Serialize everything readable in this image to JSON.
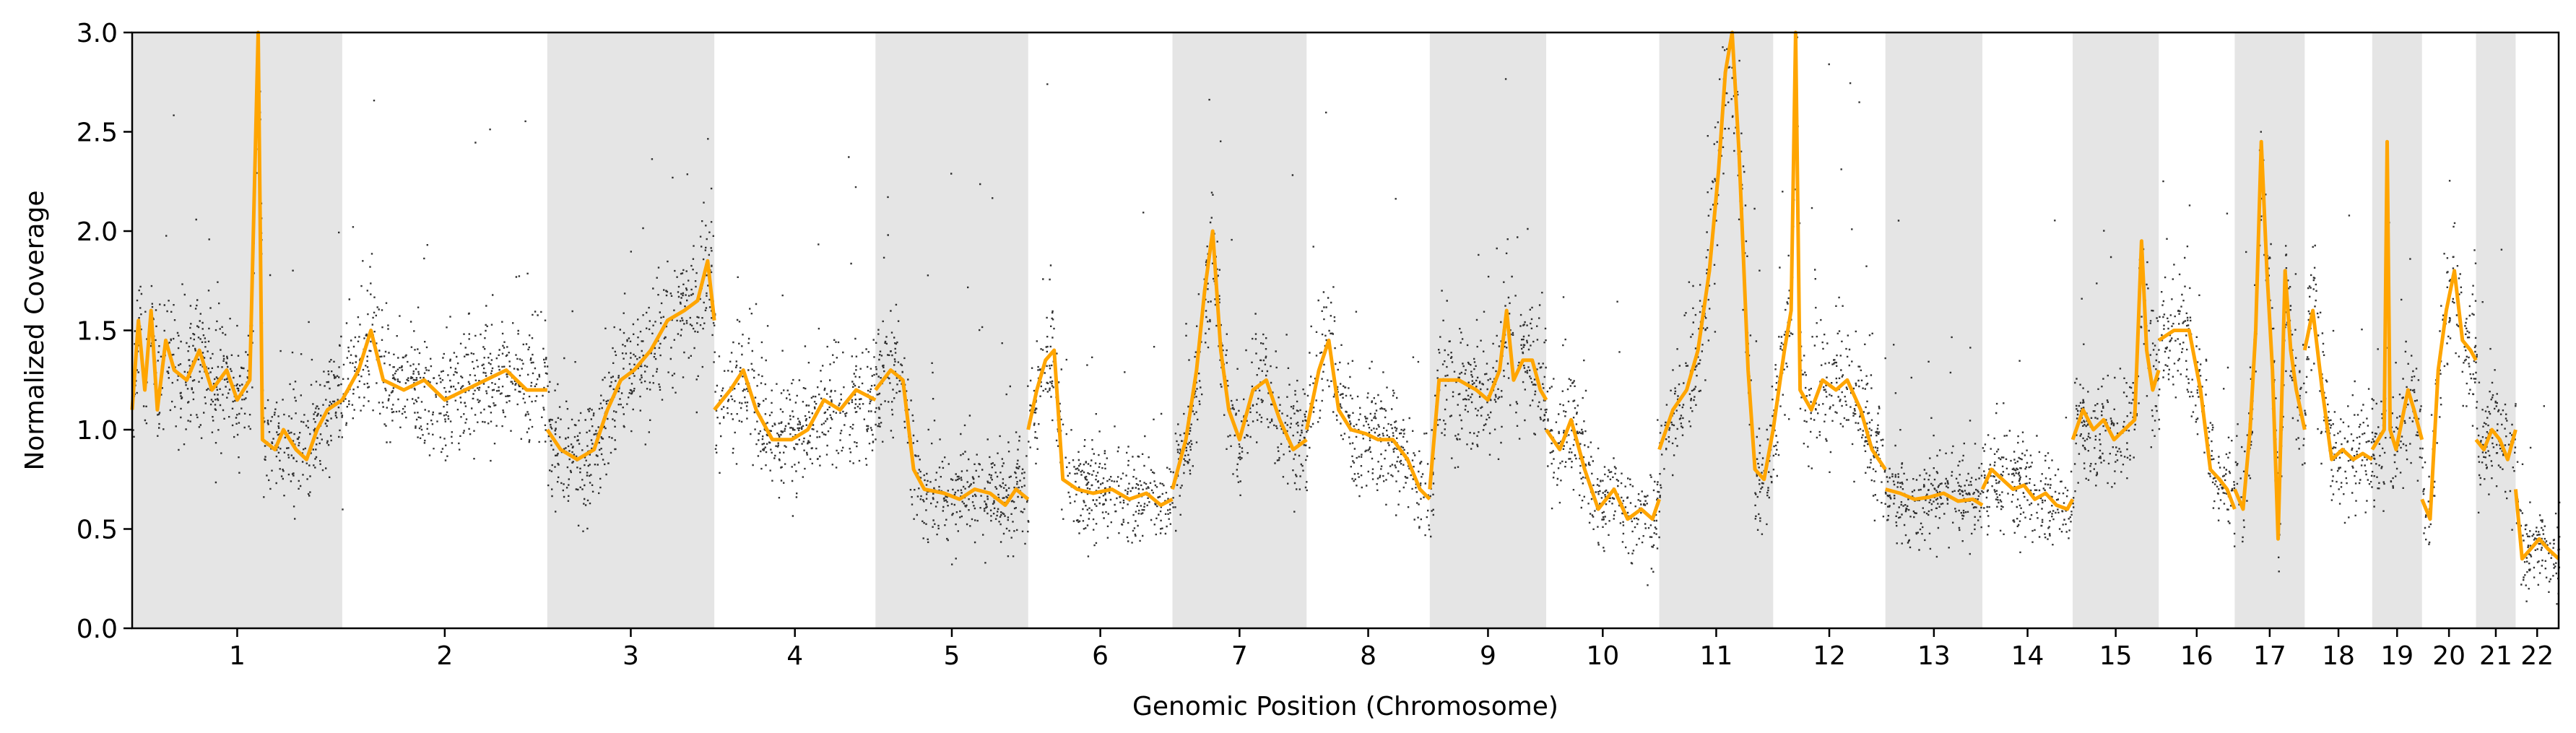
{
  "chart_data": {
    "type": "scatter",
    "xlabel": "Genomic Position (Chromosome)",
    "ylabel": "Normalized Coverage",
    "ylim": [
      0,
      3.0
    ],
    "yticks": [
      0.0,
      0.5,
      1.0,
      1.5,
      2.0,
      2.5,
      3.0
    ],
    "ytick_labels": [
      "0.0",
      "0.5",
      "1.0",
      "1.5",
      "2.0",
      "2.5",
      "3.0"
    ],
    "grid": false,
    "legend": "none",
    "chromosome_band_color": "#e5e5e5",
    "point_color": "#000000",
    "segment_color": "#ffa500",
    "chromosomes": [
      {
        "label": "1",
        "length": 249,
        "shaded": true,
        "seg": [
          [
            0,
            1.1
          ],
          [
            0.03,
            1.55
          ],
          [
            0.06,
            1.2
          ],
          [
            0.09,
            1.6
          ],
          [
            0.12,
            1.1
          ],
          [
            0.16,
            1.45
          ],
          [
            0.2,
            1.3
          ],
          [
            0.26,
            1.25
          ],
          [
            0.32,
            1.4
          ],
          [
            0.38,
            1.2
          ],
          [
            0.45,
            1.3
          ],
          [
            0.5,
            1.15
          ],
          [
            0.56,
            1.25
          ],
          [
            0.6,
            3.0
          ],
          [
            0.62,
            0.95
          ],
          [
            0.68,
            0.9
          ],
          [
            0.72,
            1.0
          ],
          [
            0.78,
            0.9
          ],
          [
            0.83,
            0.85
          ],
          [
            0.88,
            1.0
          ],
          [
            0.93,
            1.1
          ],
          [
            1.0,
            1.15
          ]
        ]
      },
      {
        "label": "2",
        "length": 243,
        "shaded": false,
        "seg": [
          [
            0,
            1.15
          ],
          [
            0.08,
            1.3
          ],
          [
            0.14,
            1.5
          ],
          [
            0.2,
            1.25
          ],
          [
            0.3,
            1.2
          ],
          [
            0.4,
            1.25
          ],
          [
            0.5,
            1.15
          ],
          [
            0.6,
            1.2
          ],
          [
            0.7,
            1.25
          ],
          [
            0.8,
            1.3
          ],
          [
            0.9,
            1.2
          ],
          [
            1.0,
            1.2
          ]
        ]
      },
      {
        "label": "3",
        "length": 198,
        "shaded": true,
        "seg": [
          [
            0,
            1.0
          ],
          [
            0.08,
            0.9
          ],
          [
            0.18,
            0.85
          ],
          [
            0.28,
            0.9
          ],
          [
            0.36,
            1.1
          ],
          [
            0.44,
            1.25
          ],
          [
            0.52,
            1.3
          ],
          [
            0.62,
            1.4
          ],
          [
            0.72,
            1.55
          ],
          [
            0.82,
            1.6
          ],
          [
            0.9,
            1.65
          ],
          [
            0.96,
            1.85
          ],
          [
            1.0,
            1.55
          ]
        ]
      },
      {
        "label": "4",
        "length": 191,
        "shaded": false,
        "seg": [
          [
            0,
            1.1
          ],
          [
            0.1,
            1.2
          ],
          [
            0.18,
            1.3
          ],
          [
            0.26,
            1.1
          ],
          [
            0.36,
            0.95
          ],
          [
            0.48,
            0.95
          ],
          [
            0.58,
            1.0
          ],
          [
            0.68,
            1.15
          ],
          [
            0.78,
            1.1
          ],
          [
            0.88,
            1.2
          ],
          [
            1.0,
            1.15
          ]
        ]
      },
      {
        "label": "5",
        "length": 181,
        "shaded": true,
        "seg": [
          [
            0,
            1.2
          ],
          [
            0.1,
            1.3
          ],
          [
            0.18,
            1.25
          ],
          [
            0.25,
            0.8
          ],
          [
            0.32,
            0.7
          ],
          [
            0.45,
            0.68
          ],
          [
            0.55,
            0.65
          ],
          [
            0.65,
            0.7
          ],
          [
            0.75,
            0.68
          ],
          [
            0.85,
            0.62
          ],
          [
            0.92,
            0.7
          ],
          [
            1.0,
            0.65
          ]
        ]
      },
      {
        "label": "6",
        "length": 171,
        "shaded": false,
        "seg": [
          [
            0,
            1.0
          ],
          [
            0.06,
            1.2
          ],
          [
            0.12,
            1.35
          ],
          [
            0.18,
            1.4
          ],
          [
            0.24,
            0.75
          ],
          [
            0.34,
            0.7
          ],
          [
            0.45,
            0.68
          ],
          [
            0.58,
            0.7
          ],
          [
            0.7,
            0.65
          ],
          [
            0.82,
            0.68
          ],
          [
            0.92,
            0.62
          ],
          [
            1.0,
            0.65
          ]
        ]
      },
      {
        "label": "7",
        "length": 159,
        "shaded": true,
        "seg": [
          [
            0,
            0.7
          ],
          [
            0.1,
            0.95
          ],
          [
            0.18,
            1.3
          ],
          [
            0.24,
            1.7
          ],
          [
            0.3,
            2.0
          ],
          [
            0.36,
            1.4
          ],
          [
            0.42,
            1.1
          ],
          [
            0.5,
            0.95
          ],
          [
            0.6,
            1.2
          ],
          [
            0.7,
            1.25
          ],
          [
            0.8,
            1.05
          ],
          [
            0.9,
            0.9
          ],
          [
            1.0,
            0.95
          ]
        ]
      },
      {
        "label": "8",
        "length": 146,
        "shaded": false,
        "seg": [
          [
            0,
            1.0
          ],
          [
            0.1,
            1.3
          ],
          [
            0.18,
            1.45
          ],
          [
            0.26,
            1.1
          ],
          [
            0.36,
            1.0
          ],
          [
            0.48,
            0.98
          ],
          [
            0.58,
            0.95
          ],
          [
            0.7,
            0.95
          ],
          [
            0.82,
            0.85
          ],
          [
            0.92,
            0.7
          ],
          [
            1.0,
            0.65
          ]
        ]
      },
      {
        "label": "9",
        "length": 138,
        "shaded": true,
        "seg": [
          [
            0,
            0.7
          ],
          [
            0.08,
            1.25
          ],
          [
            0.25,
            1.25
          ],
          [
            0.4,
            1.2
          ],
          [
            0.5,
            1.15
          ],
          [
            0.6,
            1.3
          ],
          [
            0.66,
            1.6
          ],
          [
            0.72,
            1.25
          ],
          [
            0.8,
            1.35
          ],
          [
            0.88,
            1.35
          ],
          [
            0.95,
            1.2
          ],
          [
            1.0,
            1.15
          ]
        ]
      },
      {
        "label": "10",
        "length": 134,
        "shaded": false,
        "seg": [
          [
            0,
            1.0
          ],
          [
            0.12,
            0.9
          ],
          [
            0.22,
            1.05
          ],
          [
            0.34,
            0.8
          ],
          [
            0.46,
            0.6
          ],
          [
            0.6,
            0.7
          ],
          [
            0.72,
            0.55
          ],
          [
            0.84,
            0.6
          ],
          [
            0.94,
            0.55
          ],
          [
            1.0,
            0.65
          ]
        ]
      },
      {
        "label": "11",
        "length": 135,
        "shaded": true,
        "seg": [
          [
            0,
            0.9
          ],
          [
            0.12,
            1.1
          ],
          [
            0.24,
            1.2
          ],
          [
            0.34,
            1.4
          ],
          [
            0.44,
            1.8
          ],
          [
            0.52,
            2.3
          ],
          [
            0.58,
            2.8
          ],
          [
            0.64,
            3.0
          ],
          [
            0.7,
            2.4
          ],
          [
            0.78,
            1.3
          ],
          [
            0.84,
            0.8
          ],
          [
            0.92,
            0.75
          ],
          [
            1.0,
            1.0
          ]
        ]
      },
      {
        "label": "12",
        "length": 133,
        "shaded": false,
        "seg": [
          [
            0,
            1.0
          ],
          [
            0.1,
            1.4
          ],
          [
            0.16,
            1.6
          ],
          [
            0.2,
            3.0
          ],
          [
            0.24,
            1.2
          ],
          [
            0.34,
            1.1
          ],
          [
            0.44,
            1.25
          ],
          [
            0.56,
            1.2
          ],
          [
            0.66,
            1.25
          ],
          [
            0.78,
            1.1
          ],
          [
            0.88,
            0.9
          ],
          [
            1.0,
            0.8
          ]
        ]
      },
      {
        "label": "13",
        "length": 115,
        "shaded": true,
        "seg": [
          [
            0,
            0.7
          ],
          [
            0.15,
            0.68
          ],
          [
            0.3,
            0.65
          ],
          [
            0.45,
            0.66
          ],
          [
            0.6,
            0.68
          ],
          [
            0.75,
            0.64
          ],
          [
            0.9,
            0.65
          ],
          [
            1.0,
            0.62
          ]
        ]
      },
      {
        "label": "14",
        "length": 107,
        "shaded": false,
        "seg": [
          [
            0,
            0.7
          ],
          [
            0.1,
            0.8
          ],
          [
            0.22,
            0.75
          ],
          [
            0.34,
            0.7
          ],
          [
            0.46,
            0.72
          ],
          [
            0.58,
            0.65
          ],
          [
            0.7,
            0.68
          ],
          [
            0.82,
            0.62
          ],
          [
            0.94,
            0.6
          ],
          [
            1.0,
            0.65
          ]
        ]
      },
      {
        "label": "15",
        "length": 102,
        "shaded": true,
        "seg": [
          [
            0,
            0.95
          ],
          [
            0.12,
            1.1
          ],
          [
            0.24,
            1.0
          ],
          [
            0.36,
            1.05
          ],
          [
            0.48,
            0.95
          ],
          [
            0.6,
            1.0
          ],
          [
            0.72,
            1.05
          ],
          [
            0.8,
            1.95
          ],
          [
            0.86,
            1.4
          ],
          [
            0.93,
            1.2
          ],
          [
            1.0,
            1.3
          ]
        ]
      },
      {
        "label": "16",
        "length": 90,
        "shaded": false,
        "seg": [
          [
            0,
            1.45
          ],
          [
            0.2,
            1.5
          ],
          [
            0.4,
            1.5
          ],
          [
            0.55,
            1.2
          ],
          [
            0.68,
            0.8
          ],
          [
            0.8,
            0.75
          ],
          [
            0.9,
            0.7
          ],
          [
            1.0,
            0.6
          ]
        ]
      },
      {
        "label": "17",
        "length": 83,
        "shaded": true,
        "seg": [
          [
            0,
            0.7
          ],
          [
            0.12,
            0.6
          ],
          [
            0.22,
            1.0
          ],
          [
            0.3,
            1.5
          ],
          [
            0.38,
            2.45
          ],
          [
            0.46,
            1.8
          ],
          [
            0.54,
            1.3
          ],
          [
            0.62,
            0.45
          ],
          [
            0.72,
            1.8
          ],
          [
            0.8,
            1.4
          ],
          [
            0.88,
            1.2
          ],
          [
            1.0,
            1.0
          ]
        ]
      },
      {
        "label": "18",
        "length": 80,
        "shaded": false,
        "seg": [
          [
            0,
            1.4
          ],
          [
            0.12,
            1.6
          ],
          [
            0.26,
            1.2
          ],
          [
            0.4,
            0.85
          ],
          [
            0.56,
            0.9
          ],
          [
            0.72,
            0.85
          ],
          [
            0.86,
            0.88
          ],
          [
            1.0,
            0.85
          ]
        ]
      },
      {
        "label": "19",
        "length": 59,
        "shaded": true,
        "seg": [
          [
            0,
            0.9
          ],
          [
            0.12,
            0.95
          ],
          [
            0.24,
            1.0
          ],
          [
            0.3,
            2.45
          ],
          [
            0.36,
            1.0
          ],
          [
            0.48,
            0.9
          ],
          [
            0.6,
            1.05
          ],
          [
            0.72,
            1.2
          ],
          [
            0.84,
            1.1
          ],
          [
            1.0,
            0.95
          ]
        ]
      },
      {
        "label": "20",
        "length": 64,
        "shaded": false,
        "seg": [
          [
            0,
            0.65
          ],
          [
            0.15,
            0.55
          ],
          [
            0.3,
            1.3
          ],
          [
            0.45,
            1.6
          ],
          [
            0.6,
            1.8
          ],
          [
            0.75,
            1.45
          ],
          [
            0.9,
            1.4
          ],
          [
            1.0,
            1.35
          ]
        ]
      },
      {
        "label": "21",
        "length": 47,
        "shaded": true,
        "seg": [
          [
            0,
            0.95
          ],
          [
            0.2,
            0.9
          ],
          [
            0.4,
            1.0
          ],
          [
            0.6,
            0.95
          ],
          [
            0.8,
            0.85
          ],
          [
            1.0,
            1.0
          ]
        ]
      },
      {
        "label": "22",
        "length": 51,
        "shaded": false,
        "seg": [
          [
            0,
            0.7
          ],
          [
            0.15,
            0.35
          ],
          [
            0.35,
            0.4
          ],
          [
            0.55,
            0.45
          ],
          [
            0.75,
            0.4
          ],
          [
            1.0,
            0.35
          ]
        ]
      }
    ]
  }
}
